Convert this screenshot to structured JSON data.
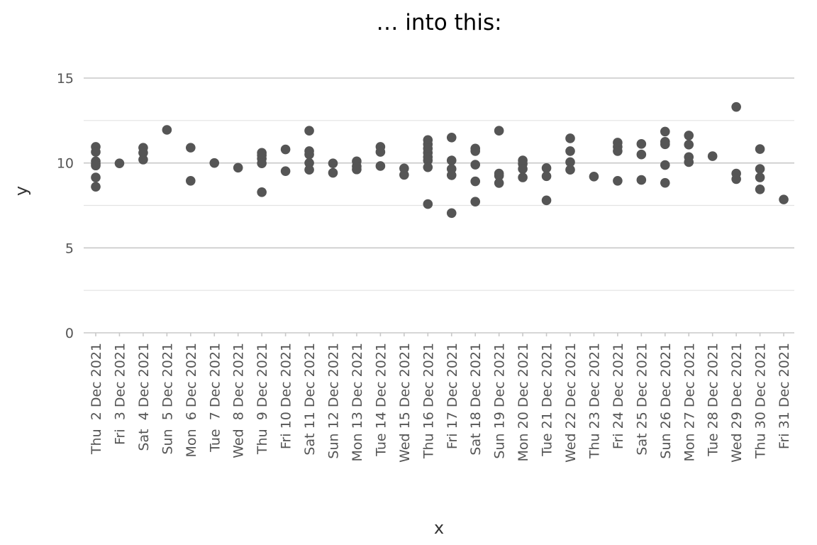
{
  "chart_data": {
    "type": "scatter",
    "title": "… into this:",
    "xlabel": "x",
    "ylabel": "y",
    "ylim": [
      0,
      15
    ],
    "yticks": [
      0,
      5,
      10,
      15
    ],
    "grid": true,
    "legend": "none",
    "colors": {
      "points": "#555555",
      "grid": "#c8c8c8"
    },
    "categories": [
      "Thu  2 Dec 2021",
      "Fri  3 Dec 2021",
      "Sat  4 Dec 2021",
      "Sun  5 Dec 2021",
      "Mon  6 Dec 2021",
      "Tue  7 Dec 2021",
      "Wed  8 Dec 2021",
      "Thu  9 Dec 2021",
      "Fri 10 Dec 2021",
      "Sat 11 Dec 2021",
      "Sun 12 Dec 2021",
      "Mon 13 Dec 2021",
      "Tue 14 Dec 2021",
      "Wed 15 Dec 2021",
      "Thu 16 Dec 2021",
      "Fri 17 Dec 2021",
      "Sat 18 Dec 2021",
      "Sun 19 Dec 2021",
      "Mon 20 Dec 2021",
      "Tue 21 Dec 2021",
      "Wed 22 Dec 2021",
      "Thu 23 Dec 2021",
      "Fri 24 Dec 2021",
      "Sat 25 Dec 2021",
      "Sun 26 Dec 2021",
      "Mon 27 Dec 2021",
      "Tue 28 Dec 2021",
      "Wed 29 Dec 2021",
      "Thu 30 Dec 2021",
      "Fri 31 Dec 2021"
    ],
    "points": [
      {
        "x": "Thu  2 Dec 2021",
        "y": 10.95
      },
      {
        "x": "Thu  2 Dec 2021",
        "y": 10.65
      },
      {
        "x": "Thu  2 Dec 2021",
        "y": 10.1
      },
      {
        "x": "Thu  2 Dec 2021",
        "y": 9.95
      },
      {
        "x": "Thu  2 Dec 2021",
        "y": 9.85
      },
      {
        "x": "Thu  2 Dec 2021",
        "y": 9.15
      },
      {
        "x": "Thu  2 Dec 2021",
        "y": 8.6
      },
      {
        "x": "Fri  3 Dec 2021",
        "y": 9.98
      },
      {
        "x": "Sat  4 Dec 2021",
        "y": 10.9
      },
      {
        "x": "Sat  4 Dec 2021",
        "y": 10.6
      },
      {
        "x": "Sat  4 Dec 2021",
        "y": 10.2
      },
      {
        "x": "Sun  5 Dec 2021",
        "y": 11.95
      },
      {
        "x": "Mon  6 Dec 2021",
        "y": 10.9
      },
      {
        "x": "Mon  6 Dec 2021",
        "y": 8.95
      },
      {
        "x": "Tue  7 Dec 2021",
        "y": 10.0
      },
      {
        "x": "Wed  8 Dec 2021",
        "y": 9.72
      },
      {
        "x": "Thu  9 Dec 2021",
        "y": 10.6
      },
      {
        "x": "Thu  9 Dec 2021",
        "y": 10.45
      },
      {
        "x": "Thu  9 Dec 2021",
        "y": 10.25
      },
      {
        "x": "Thu  9 Dec 2021",
        "y": 9.98
      },
      {
        "x": "Thu  9 Dec 2021",
        "y": 8.28
      },
      {
        "x": "Fri 10 Dec 2021",
        "y": 10.8
      },
      {
        "x": "Fri 10 Dec 2021",
        "y": 9.52
      },
      {
        "x": "Sat 11 Dec 2021",
        "y": 11.9
      },
      {
        "x": "Sat 11 Dec 2021",
        "y": 10.7
      },
      {
        "x": "Sat 11 Dec 2021",
        "y": 10.5
      },
      {
        "x": "Sat 11 Dec 2021",
        "y": 10.0
      },
      {
        "x": "Sat 11 Dec 2021",
        "y": 9.6
      },
      {
        "x": "Sun 12 Dec 2021",
        "y": 9.98
      },
      {
        "x": "Sun 12 Dec 2021",
        "y": 9.42
      },
      {
        "x": "Mon 13 Dec 2021",
        "y": 10.1
      },
      {
        "x": "Mon 13 Dec 2021",
        "y": 9.8
      },
      {
        "x": "Mon 13 Dec 2021",
        "y": 9.62
      },
      {
        "x": "Tue 14 Dec 2021",
        "y": 10.95
      },
      {
        "x": "Tue 14 Dec 2021",
        "y": 10.65
      },
      {
        "x": "Tue 14 Dec 2021",
        "y": 9.82
      },
      {
        "x": "Wed 15 Dec 2021",
        "y": 9.68
      },
      {
        "x": "Wed 15 Dec 2021",
        "y": 9.3
      },
      {
        "x": "Thu 16 Dec 2021",
        "y": 11.35
      },
      {
        "x": "Thu 16 Dec 2021",
        "y": 11.1
      },
      {
        "x": "Thu 16 Dec 2021",
        "y": 10.85
      },
      {
        "x": "Thu 16 Dec 2021",
        "y": 10.6
      },
      {
        "x": "Thu 16 Dec 2021",
        "y": 10.35
      },
      {
        "x": "Thu 16 Dec 2021",
        "y": 10.15
      },
      {
        "x": "Thu 16 Dec 2021",
        "y": 9.75
      },
      {
        "x": "Thu 16 Dec 2021",
        "y": 7.58
      },
      {
        "x": "Fri 17 Dec 2021",
        "y": 11.5
      },
      {
        "x": "Fri 17 Dec 2021",
        "y": 10.15
      },
      {
        "x": "Fri 17 Dec 2021",
        "y": 9.65
      },
      {
        "x": "Fri 17 Dec 2021",
        "y": 9.28
      },
      {
        "x": "Fri 17 Dec 2021",
        "y": 7.05
      },
      {
        "x": "Sat 18 Dec 2021",
        "y": 10.85
      },
      {
        "x": "Sat 18 Dec 2021",
        "y": 10.7
      },
      {
        "x": "Sat 18 Dec 2021",
        "y": 9.9
      },
      {
        "x": "Sat 18 Dec 2021",
        "y": 8.92
      },
      {
        "x": "Sat 18 Dec 2021",
        "y": 7.72
      },
      {
        "x": "Sun 19 Dec 2021",
        "y": 11.9
      },
      {
        "x": "Sun 19 Dec 2021",
        "y": 9.38
      },
      {
        "x": "Sun 19 Dec 2021",
        "y": 9.25
      },
      {
        "x": "Sun 19 Dec 2021",
        "y": 8.82
      },
      {
        "x": "Mon 20 Dec 2021",
        "y": 10.15
      },
      {
        "x": "Mon 20 Dec 2021",
        "y": 9.95
      },
      {
        "x": "Mon 20 Dec 2021",
        "y": 9.65
      },
      {
        "x": "Mon 20 Dec 2021",
        "y": 9.15
      },
      {
        "x": "Tue 21 Dec 2021",
        "y": 9.7
      },
      {
        "x": "Tue 21 Dec 2021",
        "y": 9.22
      },
      {
        "x": "Tue 21 Dec 2021",
        "y": 7.8
      },
      {
        "x": "Wed 22 Dec 2021",
        "y": 11.45
      },
      {
        "x": "Wed 22 Dec 2021",
        "y": 10.7
      },
      {
        "x": "Wed 22 Dec 2021",
        "y": 10.05
      },
      {
        "x": "Wed 22 Dec 2021",
        "y": 9.6
      },
      {
        "x": "Thu 23 Dec 2021",
        "y": 9.2
      },
      {
        "x": "Fri 24 Dec 2021",
        "y": 11.2
      },
      {
        "x": "Fri 24 Dec 2021",
        "y": 10.95
      },
      {
        "x": "Fri 24 Dec 2021",
        "y": 10.7
      },
      {
        "x": "Fri 24 Dec 2021",
        "y": 8.95
      },
      {
        "x": "Sat 25 Dec 2021",
        "y": 11.12
      },
      {
        "x": "Sat 25 Dec 2021",
        "y": 10.5
      },
      {
        "x": "Sat 25 Dec 2021",
        "y": 9.0
      },
      {
        "x": "Sun 26 Dec 2021",
        "y": 11.85
      },
      {
        "x": "Sun 26 Dec 2021",
        "y": 11.25
      },
      {
        "x": "Sun 26 Dec 2021",
        "y": 11.1
      },
      {
        "x": "Sun 26 Dec 2021",
        "y": 9.88
      },
      {
        "x": "Sun 26 Dec 2021",
        "y": 8.83
      },
      {
        "x": "Mon 27 Dec 2021",
        "y": 11.62
      },
      {
        "x": "Mon 27 Dec 2021",
        "y": 11.08
      },
      {
        "x": "Mon 27 Dec 2021",
        "y": 10.35
      },
      {
        "x": "Mon 27 Dec 2021",
        "y": 10.05
      },
      {
        "x": "Tue 28 Dec 2021",
        "y": 10.4
      },
      {
        "x": "Wed 29 Dec 2021",
        "y": 13.3
      },
      {
        "x": "Wed 29 Dec 2021",
        "y": 9.38
      },
      {
        "x": "Wed 29 Dec 2021",
        "y": 9.05
      },
      {
        "x": "Thu 30 Dec 2021",
        "y": 10.82
      },
      {
        "x": "Thu 30 Dec 2021",
        "y": 9.65
      },
      {
        "x": "Thu 30 Dec 2021",
        "y": 9.15
      },
      {
        "x": "Thu 30 Dec 2021",
        "y": 8.45
      },
      {
        "x": "Fri 31 Dec 2021",
        "y": 7.85
      }
    ]
  }
}
